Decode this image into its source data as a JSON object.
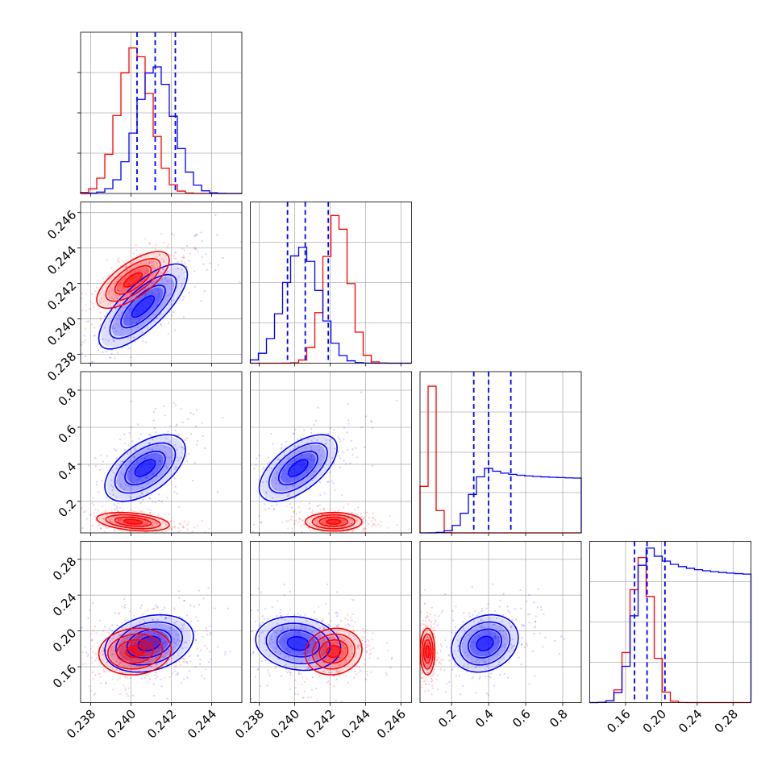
{
  "chart_data": {
    "type": "corner",
    "grid": true,
    "n_params": 4,
    "series": [
      {
        "color": "#0000ff",
        "role": "blue-samples"
      },
      {
        "color": "#ff0000",
        "role": "red-samples"
      }
    ],
    "ranges": [
      [
        0.2375,
        0.2455
      ],
      [
        0.2375,
        0.2466
      ],
      [
        0.03,
        0.9
      ],
      [
        0.12,
        0.3
      ]
    ],
    "axis_ticks": [
      {
        "values": [
          0.238,
          0.24,
          0.242,
          0.244
        ],
        "labels": [
          "0.238",
          "0.240",
          "0.242",
          "0.244"
        ]
      },
      {
        "values": [
          0.238,
          0.24,
          0.242,
          0.244,
          0.246
        ],
        "labels": [
          "0.238",
          "0.240",
          "0.242",
          "0.244",
          "0.246"
        ]
      },
      {
        "values": [
          0.2,
          0.4,
          0.6,
          0.8
        ],
        "labels": [
          "0.2",
          "0.4",
          "0.6",
          "0.8"
        ]
      },
      {
        "values": [
          0.16,
          0.2,
          0.24,
          0.28
        ],
        "labels": [
          "0.16",
          "0.20",
          "0.24",
          "0.28"
        ]
      }
    ],
    "quantile_lines_blue": [
      [
        0.2403,
        0.2412,
        0.2422
      ],
      [
        0.2396,
        0.2406,
        0.2419
      ],
      [
        0.32,
        0.4,
        0.52
      ],
      [
        0.17,
        0.184,
        0.204
      ]
    ],
    "marginals": {
      "blue": [
        {
          "mean": 0.2412,
          "sd": 0.0009,
          "peak": 0.79
        },
        {
          "mean": 0.2404,
          "sd": 0.001,
          "peak": 0.72
        },
        {
          "mean": 0.39,
          "sd": 0.08,
          "skew_tail": 0.16,
          "peak": 0.38
        },
        {
          "mean": 0.184,
          "sd": 0.014,
          "skew_tail": 0.03,
          "peak": 0.92
        }
      ],
      "red": [
        {
          "mean": 0.2402,
          "sd": 0.0008,
          "peak": 0.91
        },
        {
          "mean": 0.2424,
          "sd": 0.0007,
          "peak": 0.93
        },
        {
          "mean": 0.09,
          "sd": 0.025,
          "peak": 0.93
        },
        {
          "mean": 0.178,
          "sd": 0.012,
          "peak": 0.9
        }
      ]
    },
    "joint": {
      "blue": [
        {
          "x": 0,
          "y": 1,
          "cx": 0.2406,
          "cy": 0.2407,
          "sx": 0.0011,
          "sy": 0.0012,
          "rho": 0.75
        },
        {
          "x": 0,
          "y": 2,
          "cx": 0.2407,
          "cy": 0.38,
          "sx": 0.001,
          "sy": 0.09,
          "rho": 0.55
        },
        {
          "x": 1,
          "y": 2,
          "cx": 0.2402,
          "cy": 0.38,
          "sx": 0.0011,
          "sy": 0.09,
          "rho": 0.6
        },
        {
          "x": 0,
          "y": 3,
          "cx": 0.2409,
          "cy": 0.186,
          "sx": 0.0011,
          "sy": 0.016,
          "rho": 0.25
        },
        {
          "x": 1,
          "y": 3,
          "cx": 0.2402,
          "cy": 0.186,
          "sx": 0.0012,
          "sy": 0.015,
          "rho": -0.15
        },
        {
          "x": 2,
          "y": 3,
          "cx": 0.38,
          "cy": 0.186,
          "sx": 0.09,
          "sy": 0.016,
          "rho": 0.2
        }
      ],
      "red": [
        {
          "x": 0,
          "y": 1,
          "cx": 0.2401,
          "cy": 0.2422,
          "sx": 0.0009,
          "sy": 0.0008,
          "rho": 0.7
        },
        {
          "x": 0,
          "y": 2,
          "cx": 0.2401,
          "cy": 0.09,
          "sx": 0.0009,
          "sy": 0.025,
          "rho": -0.35
        },
        {
          "x": 1,
          "y": 2,
          "cx": 0.2422,
          "cy": 0.09,
          "sx": 0.0008,
          "sy": 0.025,
          "rho": 0.0
        },
        {
          "x": 0,
          "y": 3,
          "cx": 0.2402,
          "cy": 0.177,
          "sx": 0.0009,
          "sy": 0.013,
          "rho": 0.1
        },
        {
          "x": 1,
          "y": 3,
          "cx": 0.2422,
          "cy": 0.177,
          "sx": 0.0008,
          "sy": 0.013,
          "rho": 0.1
        },
        {
          "x": 2,
          "y": 3,
          "cx": 0.07,
          "cy": 0.177,
          "sx": 0.02,
          "sy": 0.013,
          "rho": 0.0
        }
      ]
    }
  }
}
